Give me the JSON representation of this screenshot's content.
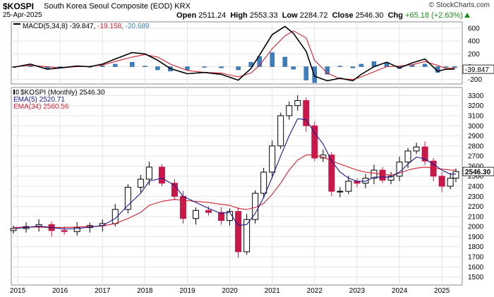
{
  "header": {
    "symbol": "$KOSPI",
    "description": "South Korea Seoul Composite (EOD)",
    "exchange": "KRX",
    "date": "25-Apr-2025",
    "open_label": "Open",
    "open": "2511.24",
    "high_label": "High",
    "high": "2553.33",
    "low_label": "Low",
    "low": "2284.72",
    "close_label": "Close",
    "close": "2546.30",
    "chg_label": "Chg",
    "chg": "+65.18 (+2.63%)",
    "brand": "© StockCharts.com"
  },
  "colors": {
    "up": "#000000",
    "down": "#c8184a",
    "ema5": "#1a1a8c",
    "ema34": "#d02030",
    "macd_line": "#000000",
    "signal_line": "#d02030",
    "histogram": "#3a7fc1",
    "chg": "#1a8c1a"
  },
  "chart_data": [
    {
      "type": "line",
      "title": "MACD(5,34,8)",
      "legend": "MACD(5,34,8) -39.847, -19.158, -20.689",
      "x": [
        2014.9,
        2015.3,
        2015.7,
        2016.0,
        2016.4,
        2016.7,
        2017.0,
        2017.3,
        2017.7,
        2018.0,
        2018.3,
        2018.6,
        2019.0,
        2019.4,
        2019.8,
        2020.2,
        2020.5,
        2020.7,
        2021.0,
        2021.3,
        2021.5,
        2021.8,
        2022.0,
        2022.3,
        2022.6,
        2022.9,
        2023.1,
        2023.4,
        2023.7,
        2024.0,
        2024.3,
        2024.6,
        2024.9,
        2025.1,
        2025.3
      ],
      "series": [
        {
          "name": "MACD",
          "values": [
            -10,
            40,
            -40,
            -20,
            10,
            0,
            40,
            120,
            220,
            200,
            100,
            -30,
            -110,
            -90,
            -120,
            -210,
            -30,
            180,
            500,
            630,
            520,
            240,
            -150,
            -220,
            -180,
            -220,
            -120,
            0,
            70,
            -20,
            60,
            120,
            -70,
            -40,
            -40
          ]
        },
        {
          "name": "Signal",
          "values": [
            0,
            20,
            0,
            -20,
            0,
            5,
            25,
            80,
            150,
            190,
            150,
            40,
            -60,
            -90,
            -100,
            -160,
            -100,
            20,
            280,
            480,
            560,
            450,
            100,
            -100,
            -190,
            -200,
            -160,
            -80,
            0,
            10,
            30,
            80,
            20,
            -30,
            -20
          ]
        },
        {
          "name": "Histogram",
          "values": [
            -10,
            20,
            -40,
            0,
            10,
            -5,
            15,
            40,
            70,
            10,
            -50,
            -70,
            -50,
            0,
            -20,
            -50,
            70,
            160,
            220,
            150,
            -40,
            -210,
            -250,
            -120,
            10,
            -20,
            40,
            80,
            70,
            -30,
            30,
            40,
            -90,
            -10,
            -20
          ]
        }
      ],
      "y_ticks": [
        "600",
        "400",
        "200",
        "0",
        "-200"
      ],
      "last_value": "-39.847",
      "ylim": [
        -270,
        700
      ]
    },
    {
      "type": "candlestick",
      "title": "$KOSPI (Monthly) 2546.30",
      "legend": [
        "$KOSPI (Monthly) 2546.30",
        "EMA(5) 2520.71",
        "EMA(34) 2560.56"
      ],
      "x": [
        2014.9,
        2015.2,
        2015.5,
        2015.8,
        2016.1,
        2016.4,
        2016.7,
        2017.0,
        2017.3,
        2017.6,
        2017.9,
        2018.1,
        2018.4,
        2018.7,
        2018.9,
        2019.2,
        2019.5,
        2019.8,
        2020.0,
        2020.2,
        2020.4,
        2020.6,
        2020.8,
        2021.0,
        2021.2,
        2021.4,
        2021.6,
        2021.8,
        2022.0,
        2022.2,
        2022.4,
        2022.6,
        2022.8,
        2023.0,
        2023.2,
        2023.4,
        2023.6,
        2023.8,
        2024.0,
        2024.2,
        2024.4,
        2024.6,
        2024.8,
        2025.0,
        2025.2,
        2025.33
      ],
      "close": [
        1980,
        2000,
        2020,
        1960,
        1950,
        1990,
        2010,
        2030,
        2170,
        2390,
        2470,
        2590,
        2430,
        2300,
        2080,
        2160,
        2140,
        2060,
        2150,
        1750,
        2070,
        2330,
        2540,
        2800,
        3100,
        3200,
        3250,
        3000,
        2680,
        2710,
        2350,
        2350,
        2450,
        2430,
        2480,
        2560,
        2460,
        2500,
        2640,
        2750,
        2790,
        2650,
        2500,
        2400,
        2480,
        2546
      ],
      "ema5": [
        1980,
        1990,
        2005,
        1990,
        1975,
        1980,
        1995,
        2010,
        2080,
        2210,
        2330,
        2450,
        2480,
        2410,
        2300,
        2240,
        2180,
        2130,
        2140,
        2010,
        2020,
        2130,
        2290,
        2490,
        2700,
        2900,
        3070,
        3060,
        2930,
        2820,
        2650,
        2540,
        2480,
        2450,
        2450,
        2490,
        2490,
        2490,
        2540,
        2620,
        2690,
        2670,
        2620,
        2560,
        2520,
        2521
      ],
      "ema34": [
        1990,
        1995,
        1995,
        1990,
        1990,
        1995,
        2000,
        2005,
        2030,
        2080,
        2140,
        2210,
        2250,
        2270,
        2260,
        2250,
        2240,
        2220,
        2210,
        2180,
        2170,
        2190,
        2230,
        2320,
        2430,
        2560,
        2660,
        2710,
        2710,
        2690,
        2650,
        2620,
        2590,
        2560,
        2540,
        2530,
        2520,
        2510,
        2530,
        2560,
        2580,
        2590,
        2580,
        2570,
        2562,
        2560
      ],
      "x_ticks": [
        "2015",
        "2016",
        "2017",
        "2018",
        "2019",
        "2020",
        "2021",
        "2022",
        "2023",
        "2024",
        "2025"
      ],
      "y_ticks": [
        "3300",
        "3200",
        "3100",
        "3000",
        "2900",
        "2800",
        "2700",
        "2600",
        "2500",
        "2400",
        "2300",
        "2200",
        "2100",
        "2000",
        "1900",
        "1800",
        "1700",
        "1600",
        "1500"
      ],
      "last_price_label": "2546.30",
      "ylim": [
        1420,
        3380
      ]
    }
  ]
}
